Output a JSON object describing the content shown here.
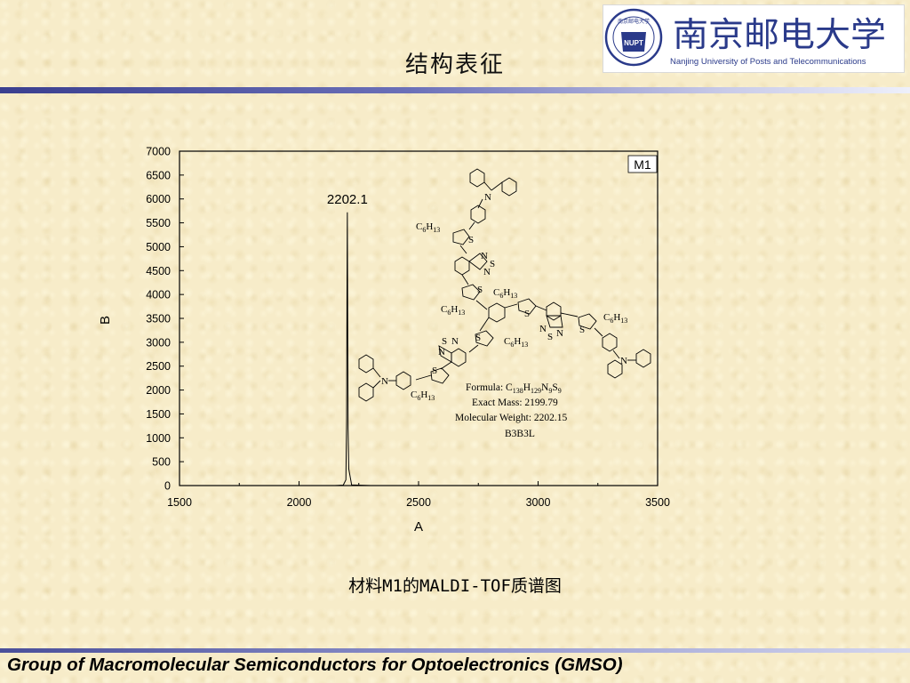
{
  "slide": {
    "title": "结构表征",
    "caption": "材料M1的MALDI-TOF质谱图",
    "footer": "Group of Macromolecular Semiconductors for Optoelectronics (GMSO)",
    "logo": {
      "name_cn": "南京邮电大学",
      "name_en": "Nanjing University of Posts and Telecommunications",
      "seal_text": "南京邮电大学",
      "seal_letters": "NUPT",
      "color": "#2a3a8a"
    },
    "accent": "#3a3f8f"
  },
  "chart_data": {
    "type": "line",
    "xlabel": "A",
    "ylabel": "B",
    "xlim": [
      1500,
      3500
    ],
    "ylim": [
      0,
      7000
    ],
    "xticks": [
      1500,
      2000,
      2500,
      3000,
      3500
    ],
    "yticks": [
      0,
      500,
      1000,
      1500,
      2000,
      2500,
      3000,
      3500,
      4000,
      4500,
      5000,
      5500,
      6000,
      6500,
      7000
    ],
    "legend": "M1",
    "legend_position": "top-right",
    "grid": false,
    "series": [
      {
        "name": "M1",
        "x": [
          1500,
          2150,
          2185,
          2196,
          2199,
          2200.5,
          2202.1,
          2203.5,
          2205,
          2208,
          2220,
          2300,
          3500
        ],
        "y": [
          0,
          0,
          10,
          120,
          1350,
          3900,
          5720,
          3600,
          1200,
          350,
          15,
          0,
          0
        ]
      }
    ],
    "annotations": [
      {
        "text": "2202.1",
        "x": 2202.1,
        "y": 5720
      }
    ],
    "inset": {
      "formula_label": "Formula: ",
      "formula": [
        "C",
        "138",
        "H",
        "129",
        "N",
        "9",
        "S",
        "9"
      ],
      "exact_mass": "Exact Mass: 2199.79",
      "molecular_weight": "Molecular Weight: 2202.15",
      "code": "B3B3L",
      "alkyl": [
        "C",
        "6",
        "H",
        "13"
      ],
      "atoms": {
        "s": "S",
        "n": "N"
      }
    }
  }
}
